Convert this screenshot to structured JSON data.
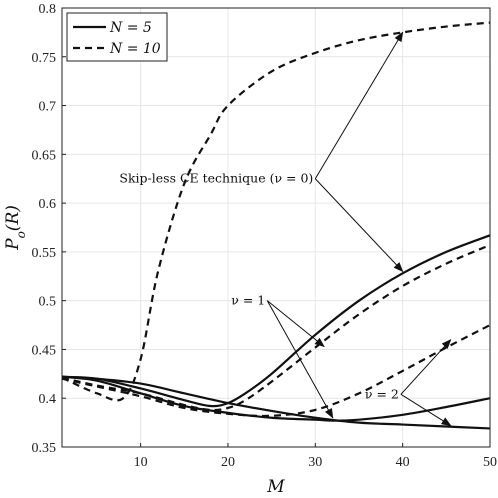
{
  "chart_data": {
    "type": "line",
    "xlabel": "M",
    "ylabel": "P_o(R)",
    "xlim": [
      1,
      50
    ],
    "ylim": [
      0.35,
      0.8
    ],
    "grid": true,
    "legend_position": "top-left",
    "x_ticks": [
      10,
      20,
      30,
      40,
      50
    ],
    "x_tick_labels": [
      "10",
      "20",
      "30",
      "40",
      "50"
    ],
    "y_ticks": [
      0.35,
      0.4,
      0.45,
      0.5,
      0.55,
      0.6,
      0.65,
      0.7,
      0.75,
      0.8
    ],
    "y_tick_labels": [
      "0.35",
      "0.4",
      "0.45",
      "0.5",
      "0.55",
      "0.6",
      "0.65",
      "0.7",
      "0.75",
      "0.8"
    ],
    "legend": [
      {
        "label": "N = 5",
        "style": "solid"
      },
      {
        "label": "N = 10",
        "style": "dashed"
      }
    ],
    "series": [
      {
        "key": "N5_nu0",
        "style": "solid",
        "x": [
          1,
          5,
          10,
          15,
          18,
          20,
          22,
          25,
          30,
          35,
          40,
          45,
          50
        ],
        "y": [
          0.422,
          0.42,
          0.41,
          0.398,
          0.392,
          0.395,
          0.405,
          0.425,
          0.465,
          0.5,
          0.528,
          0.55,
          0.567
        ]
      },
      {
        "key": "N10_nu0",
        "style": "dashed",
        "x": [
          1,
          5,
          8,
          10,
          12,
          15,
          18,
          20,
          25,
          30,
          35,
          40,
          45,
          50
        ],
        "y": [
          0.421,
          0.405,
          0.4,
          0.44,
          0.53,
          0.62,
          0.67,
          0.7,
          0.735,
          0.754,
          0.767,
          0.775,
          0.781,
          0.785
        ]
      },
      {
        "key": "N5_nu1",
        "style": "solid",
        "x": [
          1,
          5,
          10,
          15,
          20,
          25,
          30,
          35,
          40,
          45,
          50
        ],
        "y": [
          0.422,
          0.42,
          0.415,
          0.405,
          0.395,
          0.387,
          0.38,
          0.375,
          0.373,
          0.371,
          0.369
        ]
      },
      {
        "key": "N10_nu1",
        "style": "dashed",
        "x": [
          1,
          5,
          10,
          15,
          18,
          20,
          22,
          25,
          30,
          35,
          40,
          45,
          50
        ],
        "y": [
          0.421,
          0.413,
          0.405,
          0.393,
          0.388,
          0.39,
          0.398,
          0.417,
          0.452,
          0.486,
          0.515,
          0.538,
          0.557
        ]
      },
      {
        "key": "N5_nu2",
        "style": "solid",
        "x": [
          1,
          5,
          10,
          15,
          20,
          25,
          30,
          32,
          35,
          40,
          45,
          50
        ],
        "y": [
          0.422,
          0.418,
          0.405,
          0.392,
          0.385,
          0.38,
          0.378,
          0.377,
          0.378,
          0.383,
          0.391,
          0.4
        ]
      },
      {
        "key": "N10_nu2",
        "style": "dashed",
        "x": [
          1,
          5,
          10,
          15,
          20,
          25,
          30,
          35,
          40,
          45,
          50
        ],
        "y": [
          0.42,
          0.412,
          0.402,
          0.39,
          0.384,
          0.382,
          0.388,
          0.405,
          0.428,
          0.452,
          0.475
        ]
      }
    ],
    "annotations": [
      {
        "key": "skipless",
        "text": "Skip-less CE technique (ν = 0)",
        "anchor": [
          30,
          0.625
        ],
        "targets": [
          [
            40,
            0.775
          ],
          [
            40,
            0.53
          ]
        ]
      },
      {
        "key": "nu1",
        "text": "ν = 1",
        "anchor": [
          24.5,
          0.5
        ],
        "targets": [
          [
            31,
            0.453
          ],
          [
            32,
            0.38
          ]
        ]
      },
      {
        "key": "nu2",
        "text": "ν = 2",
        "anchor": [
          39.8,
          0.404
        ],
        "targets": [
          [
            45.5,
            0.46
          ],
          [
            45.5,
            0.372
          ]
        ]
      }
    ]
  }
}
